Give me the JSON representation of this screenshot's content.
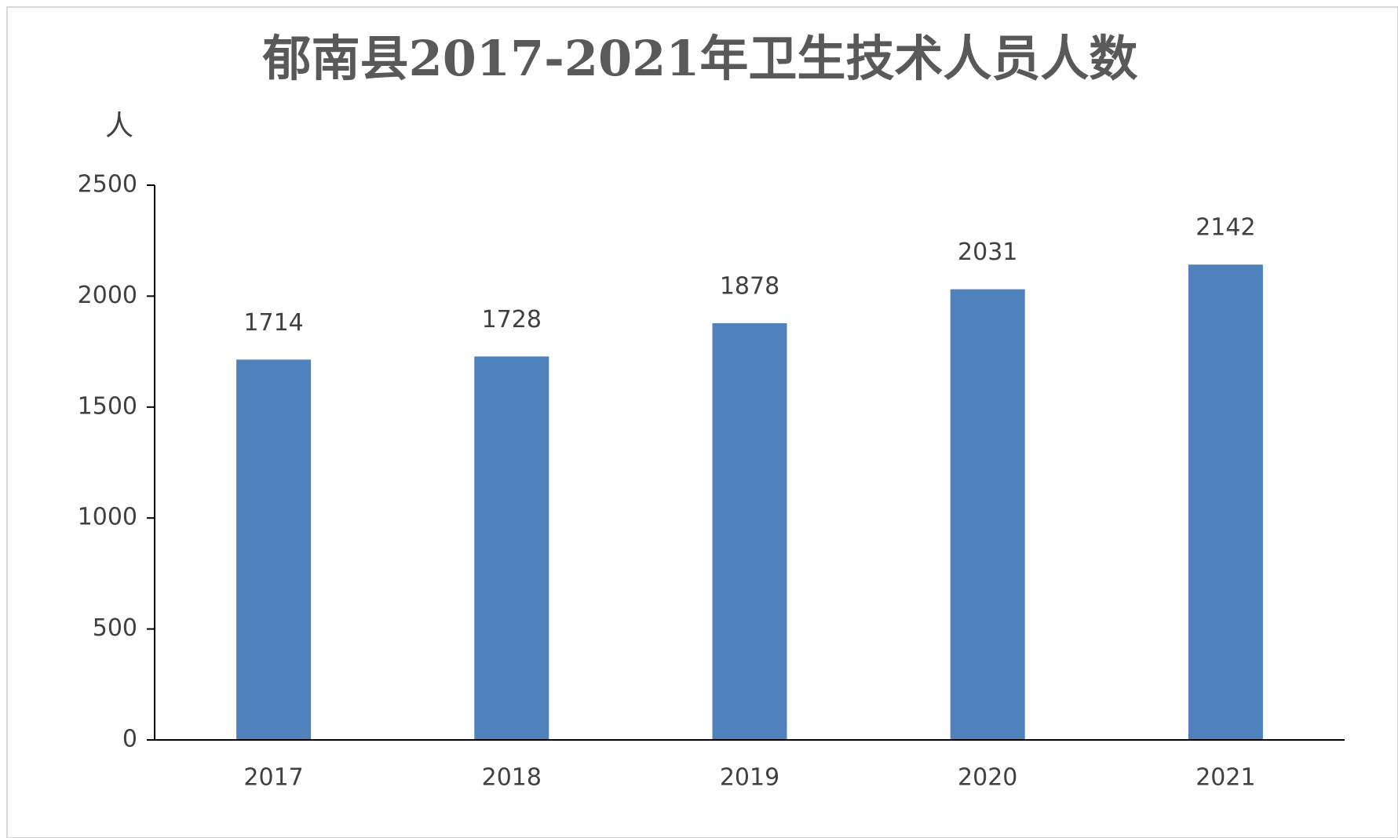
{
  "chart_data": {
    "type": "bar",
    "title": "郁南县2017-2021年卫生技术人员人数",
    "y_label": "人",
    "categories": [
      "2017",
      "2018",
      "2019",
      "2020",
      "2021"
    ],
    "values": [
      1714,
      1728,
      1878,
      2031,
      2142
    ],
    "color": "#4f81bd",
    "ylim": [
      0,
      2500
    ],
    "yticks": [
      0,
      500,
      1000,
      1500,
      2000,
      2500
    ],
    "grid": false
  }
}
